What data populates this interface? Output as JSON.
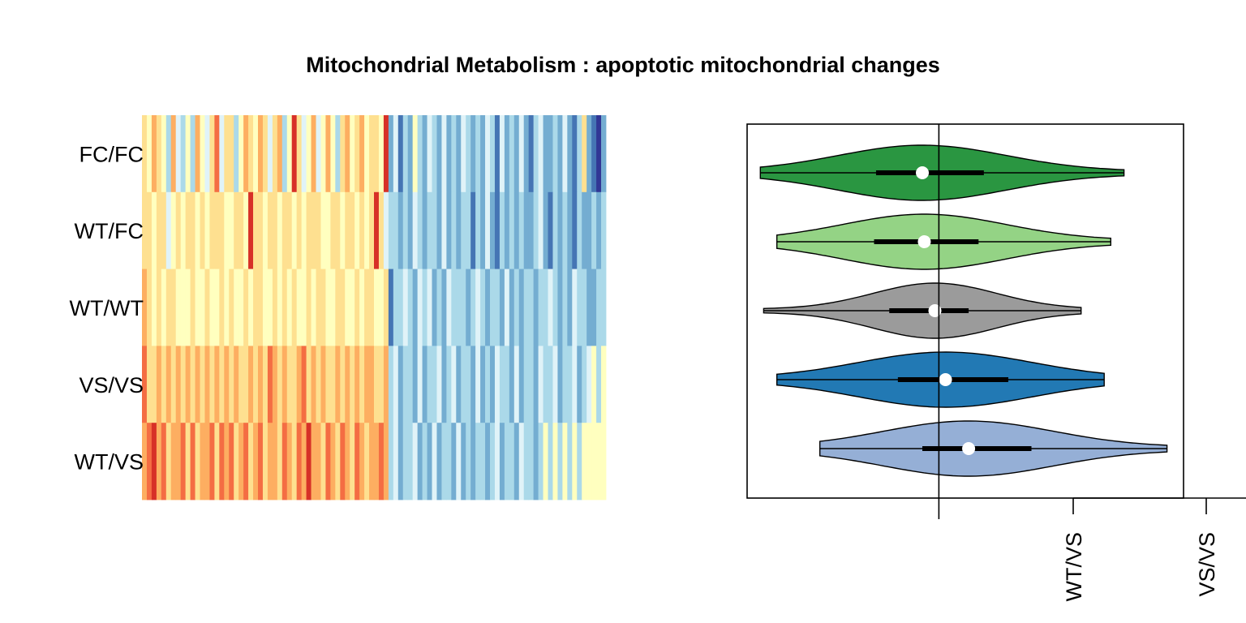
{
  "chart_data": [
    {
      "type": "heatmap",
      "title": "Mitochondrial Metabolism : apoptotic mitochondrial changes",
      "rows": [
        "FC/FC",
        "WT/FC",
        "WT/WT",
        "VS/VS",
        "WT/VS"
      ],
      "n_columns": 96,
      "value_range": [
        -1,
        1
      ],
      "palette": [
        "#313695",
        "#4575b4",
        "#74add1",
        "#abd9e9",
        "#e0f3f8",
        "#ffffbf",
        "#fee090",
        "#fdae61",
        "#f46d43",
        "#d73027"
      ],
      "values": [
        [
          0.32,
          0.1,
          0.44,
          0.24,
          0.18,
          -0.35,
          0.52,
          -0.08,
          -0.3,
          0.06,
          -0.22,
          0.4,
          0.14,
          -0.18,
          0.3,
          0.62,
          -0.06,
          0.2,
          0.38,
          -0.28,
          0.08,
          0.48,
          0.28,
          0.0,
          0.55,
          0.34,
          -0.14,
          0.22,
          0.46,
          -0.32,
          0.04,
          0.88,
          0.24,
          -0.2,
          0.12,
          0.5,
          -0.04,
          0.16,
          0.42,
          0.08,
          -0.24,
          0.3,
          0.44,
          0.02,
          0.36,
          0.54,
          0.1,
          0.26,
          0.38,
          0.12,
          0.82,
          -0.46,
          -0.12,
          -0.62,
          -0.24,
          -0.42,
          0.14,
          -0.34,
          -0.48,
          -0.18,
          -0.36,
          -0.52,
          -0.1,
          -0.56,
          -0.3,
          -0.44,
          -0.06,
          -0.38,
          -0.6,
          -0.22,
          -0.48,
          -0.14,
          -0.4,
          -0.62,
          -0.16,
          -0.46,
          -0.34,
          -0.58,
          -0.2,
          -0.5,
          -0.66,
          -0.26,
          -0.08,
          -0.44,
          -0.56,
          -0.3,
          -0.42,
          -0.12,
          -0.52,
          -0.7,
          -0.24,
          0.28,
          -0.46,
          -0.66,
          -0.82,
          -0.5
        ],
        [
          0.2,
          0.28,
          0.12,
          0.34,
          0.22,
          -0.06,
          0.18,
          0.3,
          0.08,
          0.26,
          0.24,
          0.14,
          0.36,
          0.1,
          0.28,
          0.2,
          0.32,
          0.16,
          0.12,
          0.24,
          0.3,
          0.06,
          0.9,
          0.2,
          0.28,
          0.14,
          0.36,
          0.22,
          0.1,
          0.26,
          0.32,
          0.16,
          0.24,
          0.12,
          0.3,
          0.2,
          0.28,
          0.08,
          0.18,
          0.34,
          0.22,
          0.14,
          0.26,
          0.3,
          0.18,
          0.22,
          0.12,
          0.28,
          0.8,
          0.2,
          -0.1,
          -0.4,
          -0.24,
          -0.5,
          -0.3,
          -0.44,
          -0.2,
          -0.36,
          -0.54,
          -0.26,
          -0.4,
          -0.58,
          -0.18,
          -0.46,
          -0.32,
          -0.52,
          -0.24,
          -0.38,
          -0.62,
          -0.28,
          -0.44,
          -0.2,
          -0.5,
          -0.66,
          -0.34,
          -0.48,
          -0.22,
          -0.56,
          -0.3,
          -0.42,
          -0.6,
          -0.36,
          -0.18,
          -0.5,
          -0.64,
          -0.28,
          -0.44,
          -0.24,
          -0.54,
          -0.68,
          -0.32,
          -0.46,
          -0.58,
          -0.4,
          -0.52,
          -0.3
        ],
        [
          0.5,
          0.22,
          0.16,
          0.3,
          0.1,
          0.2,
          0.26,
          0.14,
          0.08,
          0.18,
          0.24,
          0.12,
          0.1,
          0.28,
          0.16,
          0.06,
          0.22,
          0.14,
          0.26,
          0.1,
          0.18,
          0.24,
          0.08,
          0.2,
          0.28,
          0.12,
          0.16,
          0.3,
          0.1,
          0.22,
          0.14,
          0.26,
          0.18,
          0.08,
          0.24,
          0.12,
          0.2,
          0.28,
          0.16,
          0.1,
          0.22,
          0.3,
          0.14,
          0.18,
          0.26,
          0.12,
          0.2,
          0.24,
          0.16,
          0.1,
          0.22,
          -0.62,
          -0.24,
          -0.4,
          -0.16,
          -0.3,
          -0.48,
          -0.2,
          -0.36,
          -0.12,
          -0.44,
          -0.26,
          -0.52,
          -0.18,
          -0.34,
          -0.4,
          -0.22,
          -0.46,
          -0.28,
          -0.14,
          -0.38,
          -0.5,
          -0.24,
          -0.32,
          -0.44,
          -0.18,
          -0.42,
          -0.3,
          -0.54,
          -0.22,
          -0.36,
          -0.48,
          -0.26,
          -0.4,
          -0.16,
          -0.34,
          -0.52,
          -0.28,
          -0.44,
          -0.2,
          -0.38,
          -0.3,
          -0.46,
          -0.56,
          -0.34,
          -0.24
        ],
        [
          0.6,
          0.38,
          0.3,
          0.52,
          0.24,
          0.44,
          0.34,
          0.58,
          0.28,
          0.4,
          0.2,
          0.48,
          0.36,
          0.54,
          0.26,
          0.42,
          0.32,
          0.5,
          0.22,
          0.46,
          0.38,
          0.3,
          0.56,
          0.34,
          0.44,
          0.24,
          0.72,
          0.4,
          0.28,
          0.52,
          0.36,
          0.2,
          0.48,
          0.66,
          0.3,
          0.42,
          0.26,
          0.54,
          0.38,
          0.32,
          0.46,
          0.22,
          0.5,
          0.34,
          0.58,
          0.28,
          0.4,
          0.44,
          0.24,
          0.36,
          0.52,
          -0.3,
          -0.14,
          -0.44,
          -0.22,
          -0.36,
          -0.6,
          -0.18,
          -0.48,
          -0.26,
          -0.4,
          -0.12,
          -0.52,
          -0.3,
          -0.2,
          -0.46,
          -0.34,
          -0.24,
          -0.56,
          -0.16,
          -0.42,
          -0.28,
          -0.5,
          -0.2,
          -0.38,
          -0.26,
          -0.44,
          -0.14,
          -0.54,
          -0.32,
          -0.22,
          -0.48,
          -0.18,
          -0.4,
          -0.3,
          -0.12,
          -0.46,
          -0.24,
          -0.36,
          -0.2,
          -0.5,
          -0.28,
          -0.16,
          0.1,
          -0.3,
          0.12
        ],
        [
          0.58,
          0.72,
          0.92,
          0.4,
          0.66,
          0.34,
          0.52,
          0.44,
          0.7,
          0.38,
          0.62,
          0.28,
          0.56,
          0.46,
          0.78,
          0.32,
          0.6,
          0.42,
          0.68,
          0.36,
          0.54,
          0.74,
          0.3,
          0.5,
          0.64,
          0.26,
          0.48,
          0.58,
          0.38,
          0.72,
          0.44,
          0.34,
          0.62,
          0.52,
          0.86,
          0.4,
          0.56,
          0.3,
          0.66,
          0.46,
          0.36,
          0.76,
          0.42,
          0.28,
          0.6,
          0.48,
          0.34,
          0.54,
          0.4,
          0.64,
          0.5,
          -0.36,
          -0.18,
          -0.46,
          -0.26,
          -0.4,
          -0.14,
          -0.52,
          -0.3,
          -0.44,
          -0.2,
          -0.56,
          -0.34,
          -0.24,
          -0.48,
          -0.16,
          -0.42,
          -0.3,
          -0.58,
          -0.22,
          -0.38,
          -0.46,
          -0.28,
          -0.18,
          -0.5,
          -0.34,
          -0.26,
          -0.44,
          -0.2,
          -0.4,
          -0.3,
          -0.54,
          -0.24,
          0.12,
          -0.36,
          0.14,
          -0.28,
          0.1,
          -0.32,
          0.16,
          -0.22,
          0.18,
          0.12,
          0.14,
          0.1,
          0.12
        ]
      ]
    },
    {
      "type": "violin",
      "series": [
        {
          "name": "FC/FC",
          "color": "#2a9641",
          "min": -2.7,
          "q1": -0.95,
          "median": -0.25,
          "q3": 0.68,
          "max": 2.8
        },
        {
          "name": "WT/FC",
          "color": "#94d385",
          "min": -2.45,
          "q1": -0.98,
          "median": -0.22,
          "q3": 0.6,
          "max": 2.6
        },
        {
          "name": "WT/WT",
          "color": "#9b9b9b",
          "min": -2.65,
          "q1": -0.75,
          "median": -0.06,
          "q3": 0.45,
          "max": 2.15
        },
        {
          "name": "VS/VS",
          "color": "#2279b4",
          "min": -2.45,
          "q1": -0.62,
          "median": 0.1,
          "q3": 1.05,
          "max": 2.5
        },
        {
          "name": "WT/VS",
          "color": "#95afd6",
          "min": -1.8,
          "q1": -0.25,
          "median": 0.45,
          "q3": 1.4,
          "max": 3.45
        }
      ],
      "reference_line": 0,
      "xlim": [
        -2.9,
        3.7
      ],
      "extra_axis_ticks": [
        "WT/VS",
        "VS/VS"
      ]
    }
  ]
}
